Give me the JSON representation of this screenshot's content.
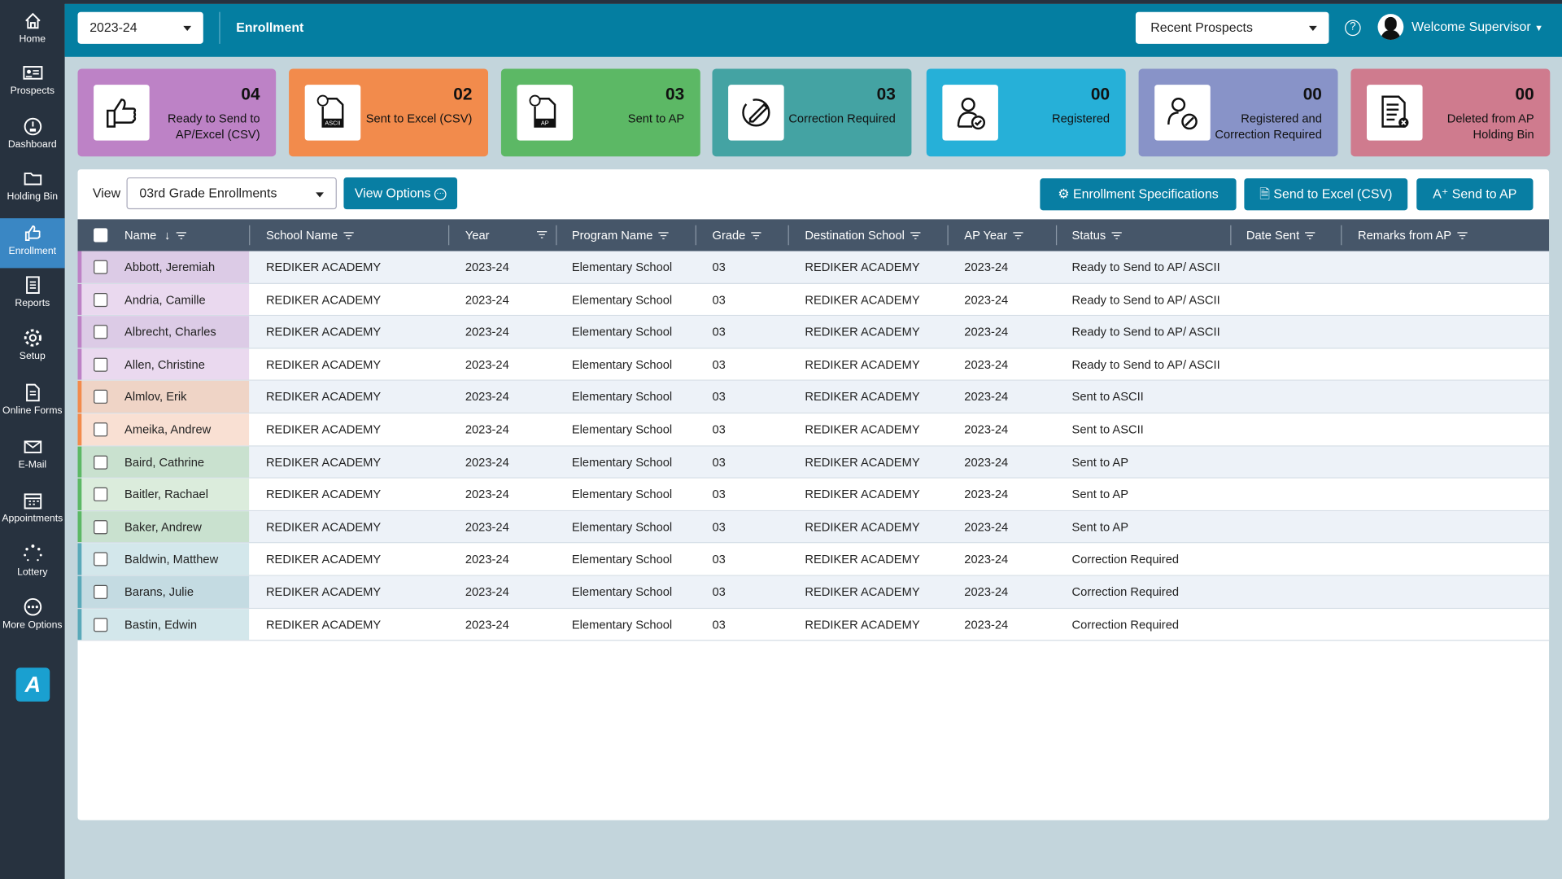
{
  "sidebar": {
    "items": [
      {
        "label": "Home",
        "icon": "home-icon"
      },
      {
        "label": "Prospects",
        "icon": "id-card-icon"
      },
      {
        "label": "Dashboard",
        "icon": "gauge-icon"
      },
      {
        "label": "Holding Bin",
        "icon": "folder-icon"
      },
      {
        "label": "Enrollment",
        "icon": "thumbs-up-icon",
        "active": true
      },
      {
        "label": "Reports",
        "icon": "report-icon"
      },
      {
        "label": "Setup",
        "icon": "gear-icon"
      },
      {
        "label": "Online Forms",
        "icon": "form-icon"
      },
      {
        "label": "E-Mail",
        "icon": "mail-icon"
      },
      {
        "label": "Appointments",
        "icon": "calendar-icon"
      },
      {
        "label": "Lottery",
        "icon": "spinner-icon"
      },
      {
        "label": "More Options",
        "icon": "more-icon"
      }
    ],
    "logo": "A"
  },
  "header": {
    "year": "2023-24",
    "title": "Enrollment",
    "recent": "Recent Prospects",
    "welcome": "Welcome Supervisor"
  },
  "cards": [
    {
      "count": "04",
      "label": "Ready to Send to AP/Excel (CSV)",
      "color": "#bd82c6"
    },
    {
      "count": "02",
      "label": "Sent to Excel (CSV)",
      "color": "#f28b4c"
    },
    {
      "count": "03",
      "label": "Sent to AP",
      "color": "#5cb865"
    },
    {
      "count": "03",
      "label": "Correction Required",
      "color": "#44a3a3"
    },
    {
      "count": "00",
      "label": "Registered",
      "color": "#26b0d8"
    },
    {
      "count": "00",
      "label": "Registered and Correction Required",
      "color": "#8893c8"
    },
    {
      "count": "00",
      "label": "Deleted from AP Holding Bin",
      "color": "#cf7b8e"
    }
  ],
  "toolbar": {
    "view_label": "View",
    "view_value": "03rd Grade Enrollments",
    "view_options": "View Options",
    "spec": "Enrollment Specifications",
    "excel": "Send to Excel (CSV)",
    "ap": "Send to AP"
  },
  "table": {
    "columns": [
      "Name",
      "School Name",
      "Year",
      "Program Name",
      "Grade",
      "Destination School",
      "AP Year",
      "Status",
      "Date Sent",
      "Remarks from AP"
    ],
    "rows": [
      [
        "Abbott, Jeremiah",
        "REDIKER ACADEMY",
        "2023-24",
        "Elementary School",
        "03",
        "REDIKER ACADEMY",
        "2023-24",
        "Ready to Send to AP/ ASCII",
        "",
        ""
      ],
      [
        "Andria, Camille",
        "REDIKER ACADEMY",
        "2023-24",
        "Elementary School",
        "03",
        "REDIKER ACADEMY",
        "2023-24",
        "Ready to Send to AP/ ASCII",
        "",
        ""
      ],
      [
        "Albrecht, Charles",
        "REDIKER ACADEMY",
        "2023-24",
        "Elementary School",
        "03",
        "REDIKER ACADEMY",
        "2023-24",
        "Ready to Send to AP/ ASCII",
        "",
        ""
      ],
      [
        "Allen, Christine",
        "REDIKER ACADEMY",
        "2023-24",
        "Elementary School",
        "03",
        "REDIKER ACADEMY",
        "2023-24",
        "Ready to Send to AP/ ASCII",
        "",
        ""
      ],
      [
        "Almlov, Erik",
        "REDIKER ACADEMY",
        "2023-24",
        "Elementary School",
        "03",
        "REDIKER ACADEMY",
        "2023-24",
        "Sent to ASCII",
        "",
        ""
      ],
      [
        "Ameika, Andrew",
        "REDIKER ACADEMY",
        "2023-24",
        "Elementary School",
        "03",
        "REDIKER ACADEMY",
        "2023-24",
        "Sent to ASCII",
        "",
        ""
      ],
      [
        "Baird, Cathrine",
        "REDIKER ACADEMY",
        "2023-24",
        "Elementary School",
        "03",
        "REDIKER ACADEMY",
        "2023-24",
        "Sent to AP",
        "",
        ""
      ],
      [
        "Baitler, Rachael",
        "REDIKER ACADEMY",
        "2023-24",
        "Elementary School",
        "03",
        "REDIKER ACADEMY",
        "2023-24",
        "Sent to AP",
        "",
        ""
      ],
      [
        "Baker, Andrew",
        "REDIKER ACADEMY",
        "2023-24",
        "Elementary School",
        "03",
        "REDIKER ACADEMY",
        "2023-24",
        "Sent to AP",
        "",
        ""
      ],
      [
        "Baldwin, Matthew",
        "REDIKER ACADEMY",
        "2023-24",
        "Elementary School",
        "03",
        "REDIKER ACADEMY",
        "2023-24",
        "Correction Required",
        "",
        ""
      ],
      [
        "Barans, Julie",
        "REDIKER ACADEMY",
        "2023-24",
        "Elementary School",
        "03",
        "REDIKER ACADEMY",
        "2023-24",
        "Correction Required",
        "",
        ""
      ],
      [
        "Bastin, Edwin",
        "REDIKER ACADEMY",
        "2023-24",
        "Elementary School",
        "03",
        "REDIKER ACADEMY",
        "2023-24",
        "Correction Required",
        "",
        ""
      ]
    ]
  },
  "status_colors": {
    "Ready to Send to AP/ ASCII": "#bd82c6",
    "Sent to ASCII": "#f28b4c",
    "Sent to AP": "#5cb865",
    "Correction Required": "#5aa9b9"
  }
}
